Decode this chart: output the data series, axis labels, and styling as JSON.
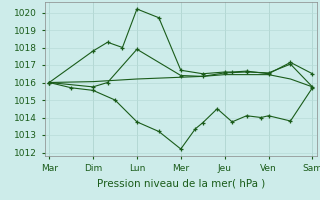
{
  "xlabel": "Pression niveau de la mer( hPa )",
  "background_color": "#cdecea",
  "grid_color": "#b8dcd8",
  "line_color": "#1a5c1a",
  "xlim": [
    -0.1,
    6.1
  ],
  "ylim": [
    1011.8,
    1020.6
  ],
  "yticks": [
    1012,
    1013,
    1014,
    1015,
    1016,
    1017,
    1018,
    1019,
    1020
  ],
  "xtick_labels": [
    "Mar",
    "Dim",
    "Lun",
    "Mer",
    "Jeu",
    "Ven",
    "Sam"
  ],
  "xtick_positions": [
    0,
    1,
    2,
    3,
    4,
    5,
    6
  ],
  "line1_x": [
    0,
    1.0,
    1.33,
    1.67,
    2.0,
    2.5,
    3.0,
    3.5,
    4.0,
    4.17,
    4.5,
    5.0,
    5.5,
    6.0
  ],
  "line1_y": [
    1016.0,
    1017.8,
    1018.3,
    1018.0,
    1020.2,
    1019.7,
    1016.7,
    1016.5,
    1016.6,
    1016.6,
    1016.65,
    1016.5,
    1017.15,
    1016.5
  ],
  "line2_x": [
    0,
    1.0,
    1.33,
    2.0,
    3.0,
    3.5,
    4.0,
    4.5,
    5.0,
    5.5,
    6.0
  ],
  "line2_y": [
    1016.0,
    1015.75,
    1016.0,
    1017.9,
    1016.4,
    1016.35,
    1016.55,
    1016.6,
    1016.55,
    1017.05,
    1015.75
  ],
  "line3_x": [
    0,
    0.5,
    1.0,
    1.5,
    2.0,
    2.5,
    3.0,
    3.33,
    3.5,
    3.83,
    4.17,
    4.5,
    4.83,
    5.0,
    5.5,
    6.0
  ],
  "line3_y": [
    1016.0,
    1015.7,
    1015.55,
    1015.0,
    1013.75,
    1013.2,
    1012.2,
    1013.35,
    1013.7,
    1014.5,
    1013.75,
    1014.1,
    1014.0,
    1014.1,
    1013.8,
    1015.7
  ],
  "line4_x": [
    0,
    1.0,
    2.0,
    3.0,
    3.5,
    4.0,
    5.0,
    5.5,
    6.0
  ],
  "line4_y": [
    1016.0,
    1016.05,
    1016.2,
    1016.3,
    1016.35,
    1016.45,
    1016.45,
    1016.2,
    1015.75
  ]
}
